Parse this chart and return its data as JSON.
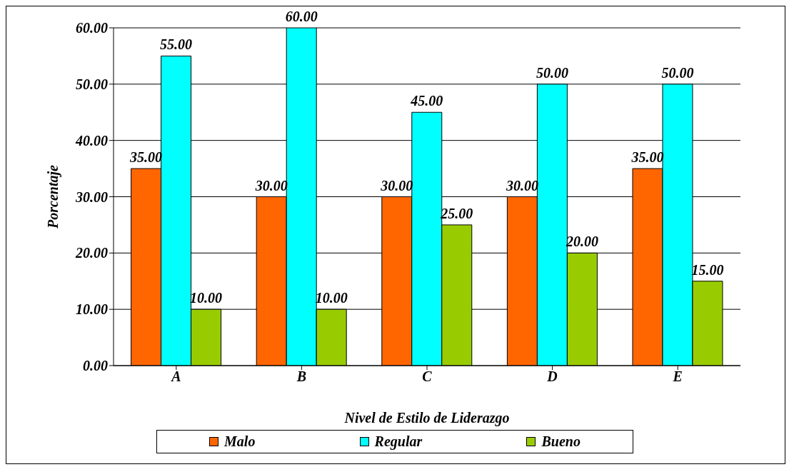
{
  "chart_data": {
    "type": "bar",
    "xlabel": "Nivel de Estilo de Liderazgo",
    "ylabel": "Porcentaje",
    "categories": [
      "A",
      "B",
      "C",
      "D",
      "E"
    ],
    "series": [
      {
        "name": "Malo",
        "color": "#ff6600",
        "values": [
          35,
          30,
          30,
          30,
          35
        ],
        "value_labels": [
          "35.00",
          "30.00",
          "30.00",
          "30.00",
          "35.00"
        ]
      },
      {
        "name": "Regular",
        "color": "#00ffff",
        "values": [
          55,
          60,
          45,
          50,
          50
        ],
        "value_labels": [
          "55.00",
          "60.00",
          "45.00",
          "50.00",
          "50.00"
        ]
      },
      {
        "name": "Bueno",
        "color": "#99cc00",
        "values": [
          10,
          10,
          25,
          20,
          15
        ],
        "value_labels": [
          "10.00",
          "10.00",
          "25.00",
          "20.00",
          "15.00"
        ]
      }
    ],
    "ylim": [
      0,
      60
    ],
    "yticks": [
      {
        "value": 0,
        "label": "0.00"
      },
      {
        "value": 10,
        "label": "10.00"
      },
      {
        "value": 20,
        "label": "20.00"
      },
      {
        "value": 30,
        "label": "30.00"
      },
      {
        "value": 40,
        "label": "40.00"
      },
      {
        "value": 50,
        "label": "50.00"
      },
      {
        "value": 60,
        "label": "60.00"
      }
    ],
    "grid": "y",
    "legend": "bottom"
  }
}
